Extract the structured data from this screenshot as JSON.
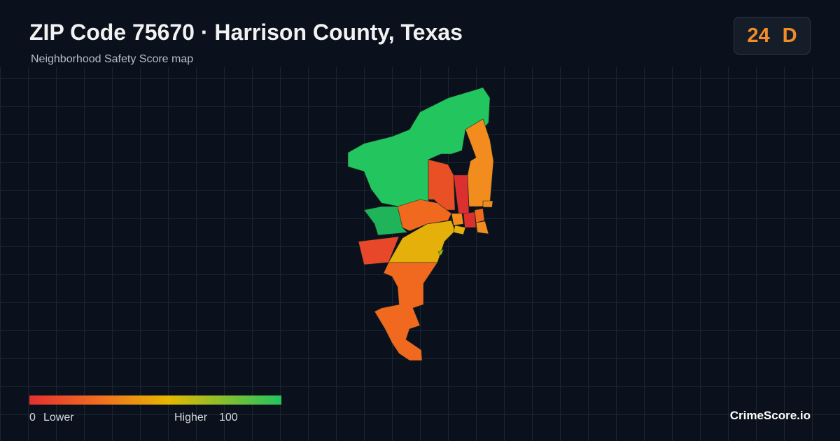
{
  "header": {
    "title": "ZIP Code 75670 · Harrison County, Texas",
    "subtitle": "Neighborhood Safety Score map"
  },
  "score": {
    "value": "24",
    "grade": "D"
  },
  "legend": {
    "min": "0",
    "min_label": "Lower",
    "max_label": "Higher",
    "max": "100"
  },
  "brand": "CrimeScore.io"
}
